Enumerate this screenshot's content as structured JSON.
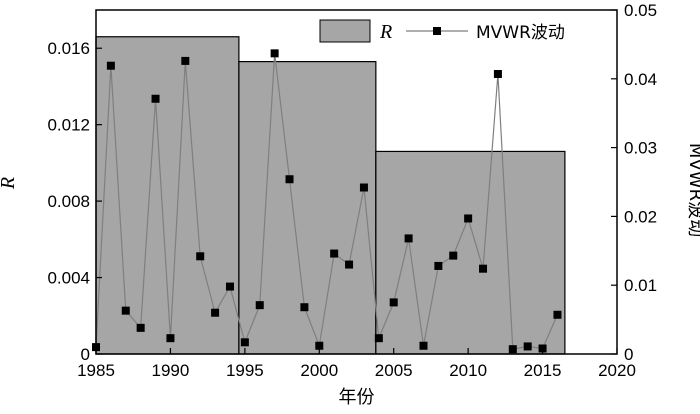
{
  "chart_data": {
    "type": "bar+line",
    "xlabel": "年份",
    "ylabel_left": "R",
    "ylabel_right": "MVWR波动",
    "xlim": [
      1985,
      2020
    ],
    "ylim_left": [
      0,
      0.018
    ],
    "ylim_right": [
      0,
      0.05
    ],
    "x_ticks": [
      "1985",
      "1990",
      "1995",
      "2000",
      "2005",
      "2010",
      "2015",
      "2020"
    ],
    "y_left_ticks": [
      "0",
      "0.004",
      "0.008",
      "0.012",
      "0.016"
    ],
    "y_right_ticks": [
      "0",
      "0.01",
      "0.02",
      "0.03",
      "0.04",
      "0.05"
    ],
    "legend": {
      "placement": "top-right",
      "entries": [
        {
          "label": "R",
          "kind": "bar"
        },
        {
          "label": "MVWR波动",
          "kind": "line-marker"
        }
      ]
    },
    "bars": [
      {
        "x_start": 1985,
        "x_end": 1994.6,
        "value": 0.0166
      },
      {
        "x_start": 1994.6,
        "x_end": 2003.8,
        "value": 0.0153
      },
      {
        "x_start": 2003.8,
        "x_end": 2016.5,
        "value": 0.0106
      }
    ],
    "line_series": {
      "name": "MVWR波动",
      "axis": "right",
      "points": [
        [
          1985,
          0.001
        ],
        [
          1986,
          0.0419
        ],
        [
          1987,
          0.0063
        ],
        [
          1988,
          0.0038
        ],
        [
          1989,
          0.0371
        ],
        [
          1990,
          0.0023
        ],
        [
          1991,
          0.0426
        ],
        [
          1992,
          0.0142
        ],
        [
          1993,
          0.006
        ],
        [
          1994,
          0.0098
        ],
        [
          1995,
          0.0017
        ],
        [
          1996,
          0.0071
        ],
        [
          1997,
          0.0437
        ],
        [
          1998,
          0.0254
        ],
        [
          1999,
          0.0068
        ],
        [
          2000,
          0.0012
        ],
        [
          2001,
          0.0146
        ],
        [
          2002,
          0.013
        ],
        [
          2003,
          0.0242
        ],
        [
          2004,
          0.0023
        ],
        [
          2005,
          0.0075
        ],
        [
          2006,
          0.0168
        ],
        [
          2007,
          0.0012
        ],
        [
          2008,
          0.0128
        ],
        [
          2009,
          0.0143
        ],
        [
          2010,
          0.0197
        ],
        [
          2011,
          0.0124
        ],
        [
          2012,
          0.0407
        ],
        [
          2013,
          0.0007
        ],
        [
          2014,
          0.0011
        ],
        [
          2015,
          0.0008
        ],
        [
          2016,
          0.0057
        ]
      ]
    },
    "colors": {
      "bar_fill": "#a6a6a6",
      "bar_stroke": "#000000",
      "line": "#7f7f7f",
      "marker": "#000000"
    }
  }
}
